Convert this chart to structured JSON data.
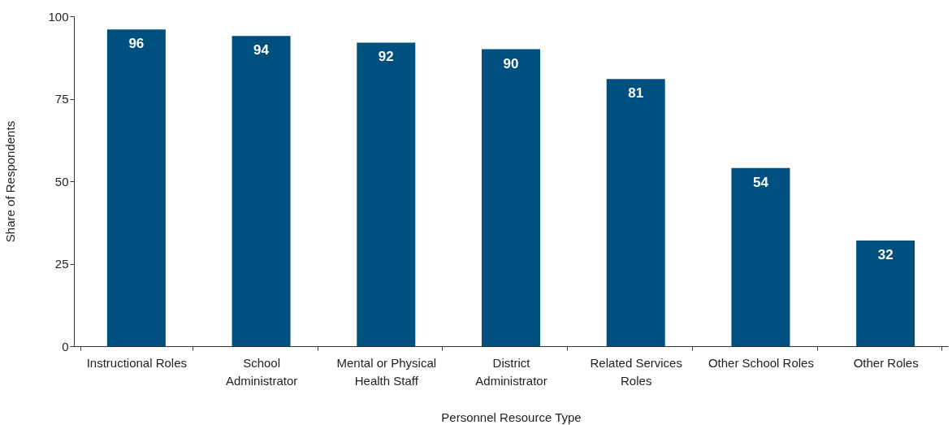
{
  "chart_data": {
    "type": "bar",
    "xlabel": "Personnel Resource Type",
    "ylabel": "Share of Respondents",
    "categories": [
      "Instructional Roles",
      "School Administrator",
      "Mental or Physical Health Staff",
      "District Administrator",
      "Related Services Roles",
      "Other School Roles",
      "Other Roles"
    ],
    "values": [
      96,
      94,
      92,
      90,
      81,
      54,
      32
    ],
    "color": "#00507f",
    "ylim": [
      0,
      100
    ],
    "yticks": [
      0,
      25,
      50,
      75,
      100
    ],
    "grid": false,
    "data_labels": true
  }
}
